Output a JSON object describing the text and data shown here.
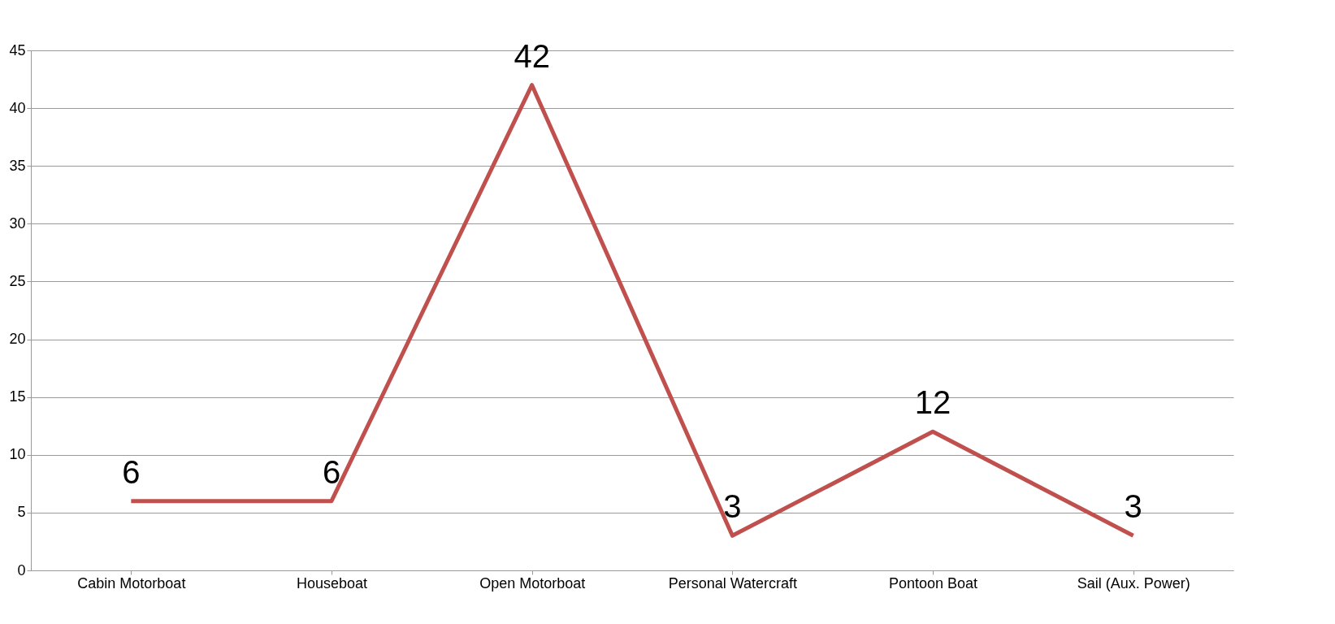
{
  "chart_data": {
    "type": "line",
    "categories": [
      "Cabin Motorboat",
      "Houseboat",
      "Open Motorboat",
      "Personal Watercraft",
      "Pontoon Boat",
      "Sail (Aux. Power)"
    ],
    "series": [
      {
        "color": "#c0504d",
        "values": [
          6,
          6,
          42,
          3,
          12,
          3
        ]
      }
    ],
    "ylim": [
      0,
      45
    ],
    "yticks": [
      0,
      5,
      10,
      15,
      20,
      25,
      30,
      35,
      40,
      45
    ],
    "grid": "y",
    "data_labels": true,
    "marker": "none"
  }
}
